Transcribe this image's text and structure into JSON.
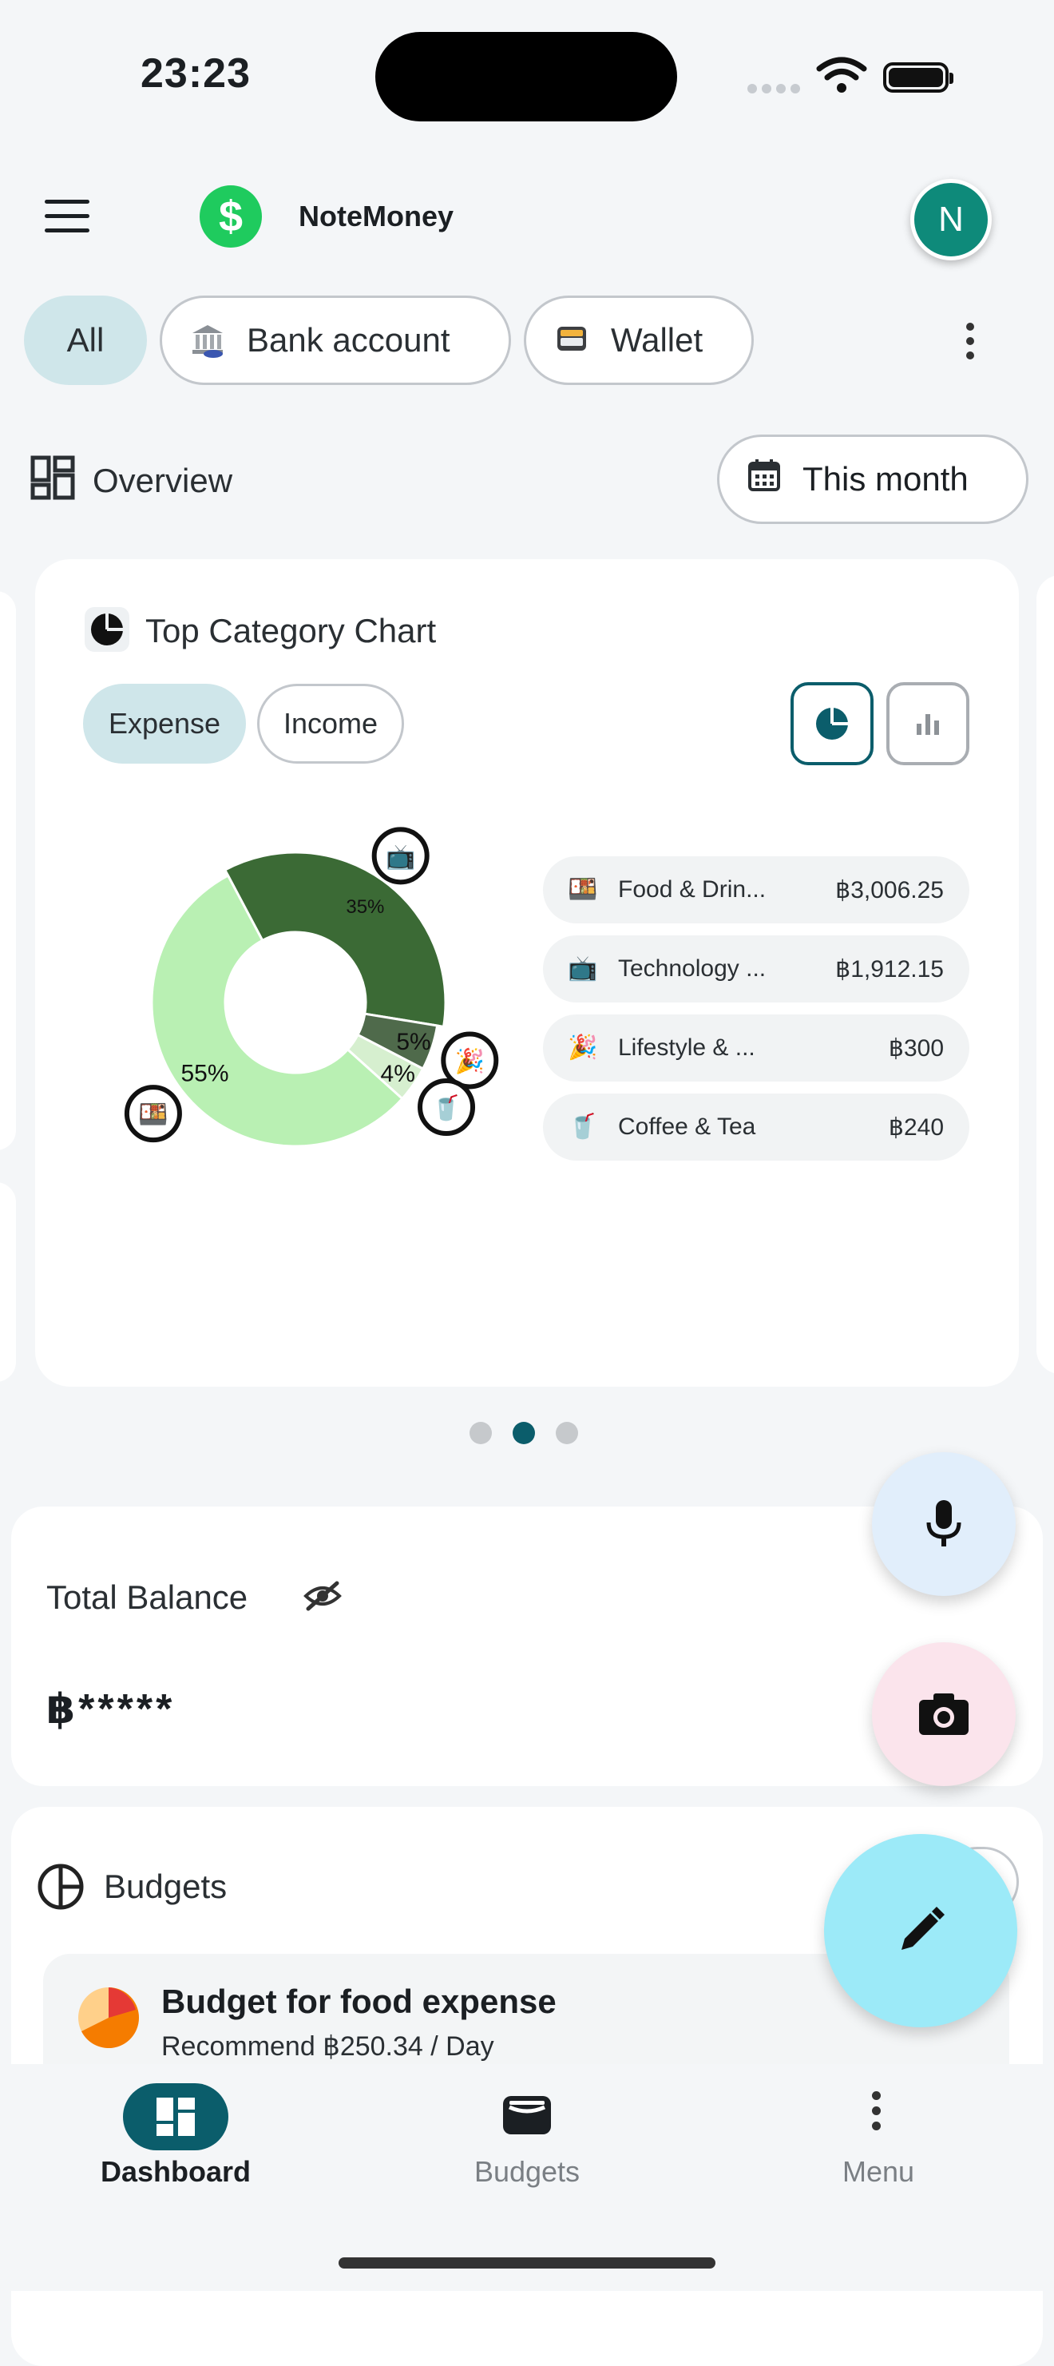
{
  "status_bar": {
    "time": "23:23"
  },
  "top_bar": {
    "app_title": "NoteMoney",
    "logo_glyph": "$",
    "avatar_initial": "N"
  },
  "filters": {
    "all": "All",
    "bank": {
      "label": "Bank account",
      "icon": "bank-icon"
    },
    "wallet": {
      "label": "Wallet",
      "icon": "wallet-icon"
    }
  },
  "overview": {
    "label": "Overview",
    "period": "This month"
  },
  "chart_card": {
    "title": "Top Category Chart",
    "tabs": {
      "expense": "Expense",
      "income": "Income"
    },
    "chart_data": {
      "type": "pie",
      "variant": "donut",
      "slices": [
        {
          "label": "Food & Drink",
          "percent": 55,
          "percent_label": "55%",
          "color": "#b9f0b3"
        },
        {
          "label": "Technology",
          "percent": 35,
          "percent_label": "35%",
          "color": "#3b6a35"
        },
        {
          "label": "Lifestyle",
          "percent": 5,
          "percent_label": "5%",
          "color": "#4f6a4b"
        },
        {
          "label": "Coffee & Tea",
          "percent": 4,
          "percent_label": "4%",
          "color": "#d6efcf"
        }
      ]
    },
    "legend": [
      {
        "name": "Food & Drin...",
        "value": "฿3,006.25",
        "icon": "🍱"
      },
      {
        "name": "Technology ...",
        "value": "฿1,912.15",
        "icon": "📺"
      },
      {
        "name": "Lifestyle & ...",
        "value": "฿300",
        "icon": "🎉"
      },
      {
        "name": "Coffee & Tea",
        "value": "฿240",
        "icon": "🥤"
      }
    ]
  },
  "balance": {
    "label": "Total Balance",
    "value": "฿*****"
  },
  "budgets": {
    "label": "Budgets",
    "item": {
      "title": "Budget for food expense",
      "subtitle": "Recommend ฿250.34 / Day"
    }
  },
  "nav": {
    "dashboard": "Dashboard",
    "budgets": "Budgets",
    "menu": "Menu"
  },
  "colors": {
    "accent": "#0b5d6b",
    "chip_selected": "#cfe6ea",
    "brand_green": "#1fcb5e"
  }
}
